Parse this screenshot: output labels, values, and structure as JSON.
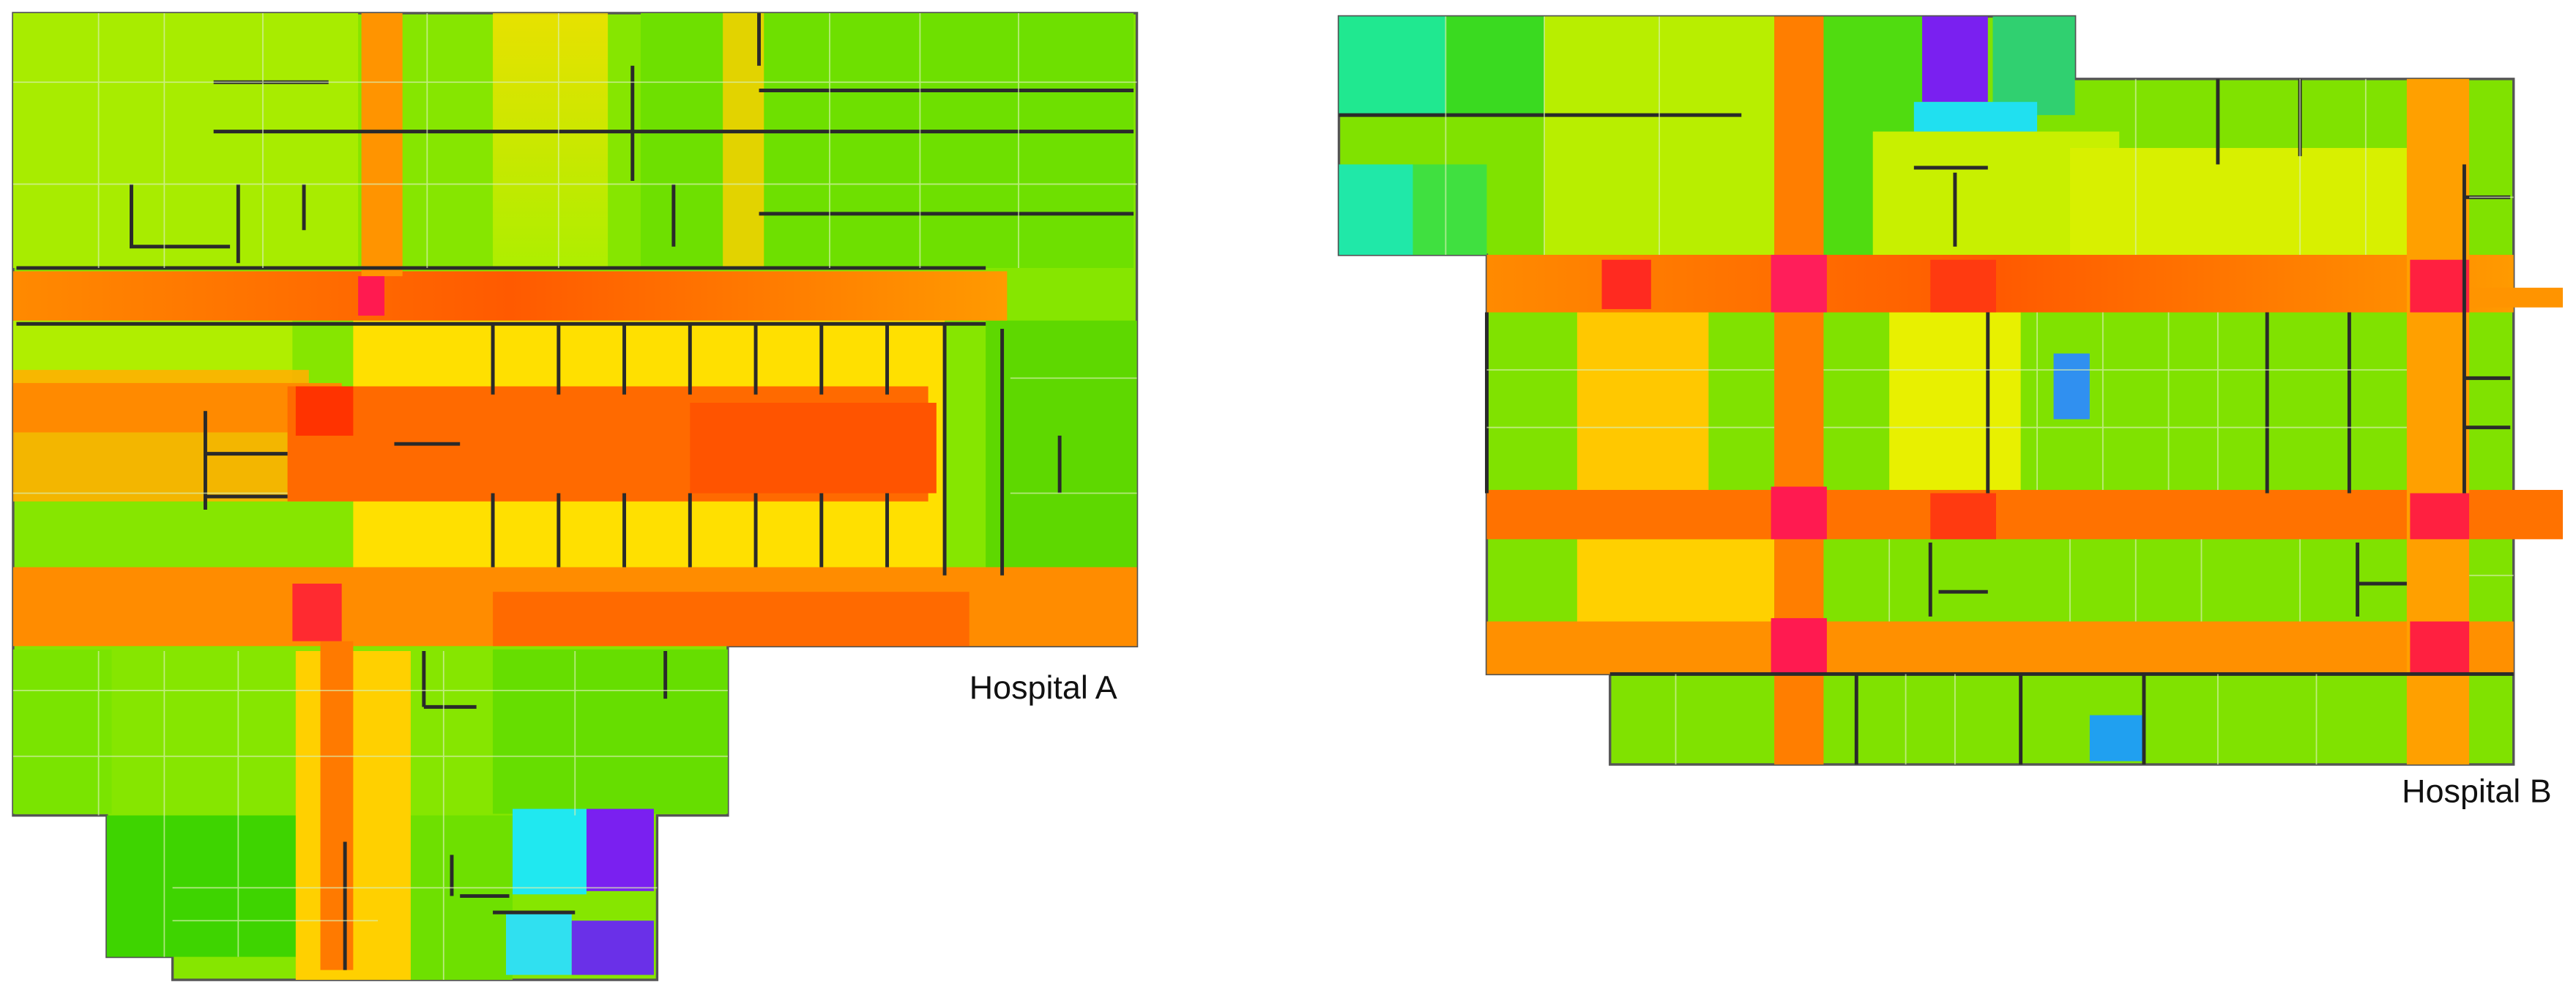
{
  "plans": [
    {
      "label": "Hospital A"
    },
    {
      "label": "Hospital B"
    }
  ]
}
